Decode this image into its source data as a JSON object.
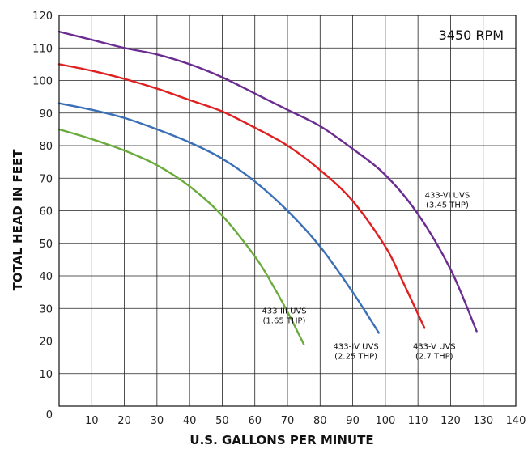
{
  "chart_data": {
    "type": "line",
    "title": "",
    "xlabel": "U.S. GALLONS PER MINUTE",
    "ylabel": "TOTAL HEAD IN FEET",
    "xlim": [
      0,
      140
    ],
    "ylim": [
      0,
      120
    ],
    "xticks": [
      10,
      20,
      30,
      40,
      50,
      60,
      70,
      80,
      90,
      100,
      110,
      120,
      130,
      140
    ],
    "yticks": [
      10,
      20,
      30,
      40,
      50,
      60,
      70,
      80,
      90,
      100,
      110,
      120
    ],
    "origin_label": "0",
    "grid": true,
    "legend": "none",
    "annotation": "3450 RPM",
    "series": [
      {
        "label_lines": [
          "433-III UVS",
          "(1.65 THP)"
        ],
        "color": "#6aab3c",
        "points": [
          [
            0,
            85
          ],
          [
            10,
            82
          ],
          [
            20,
            78.5
          ],
          [
            30,
            74
          ],
          [
            40,
            67.5
          ],
          [
            50,
            58.5
          ],
          [
            60,
            46
          ],
          [
            65,
            38
          ],
          [
            70,
            29
          ],
          [
            75,
            19
          ]
        ]
      },
      {
        "label_lines": [
          "433-IV UVS",
          "(2.25 THP)"
        ],
        "color": "#3a6fb8",
        "points": [
          [
            0,
            93
          ],
          [
            10,
            91
          ],
          [
            20,
            88.5
          ],
          [
            30,
            85
          ],
          [
            40,
            81
          ],
          [
            50,
            76
          ],
          [
            60,
            69
          ],
          [
            70,
            60
          ],
          [
            80,
            49
          ],
          [
            90,
            35
          ],
          [
            98,
            22.5
          ]
        ]
      },
      {
        "label_lines": [
          "433-V UVS",
          "(2.7 THP)"
        ],
        "color": "#e02020",
        "points": [
          [
            0,
            105
          ],
          [
            10,
            103
          ],
          [
            20,
            100.5
          ],
          [
            30,
            97.5
          ],
          [
            40,
            94
          ],
          [
            50,
            90.5
          ],
          [
            60,
            85.5
          ],
          [
            70,
            80
          ],
          [
            80,
            72.5
          ],
          [
            90,
            63
          ],
          [
            100,
            49
          ],
          [
            105,
            39
          ],
          [
            112,
            24
          ]
        ]
      },
      {
        "label_lines": [
          "433-VI UVS",
          "(3.45 THP)"
        ],
        "color": "#6b2c91",
        "points": [
          [
            0,
            115
          ],
          [
            10,
            112.5
          ],
          [
            20,
            110
          ],
          [
            30,
            108
          ],
          [
            40,
            105
          ],
          [
            50,
            101
          ],
          [
            60,
            96
          ],
          [
            70,
            91
          ],
          [
            80,
            86
          ],
          [
            90,
            79
          ],
          [
            100,
            71
          ],
          [
            110,
            59
          ],
          [
            120,
            42
          ],
          [
            128,
            23
          ]
        ]
      }
    ]
  }
}
